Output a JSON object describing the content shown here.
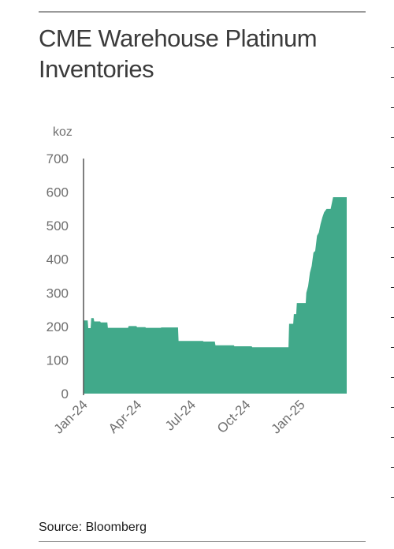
{
  "title": "CME Warehouse Platinum Inventories",
  "source": "Source: Bloomberg",
  "colors": {
    "fill": "#41a98a",
    "axis": "#555555",
    "text": "#6f6f6f",
    "rule": "#9a9a9a"
  },
  "chart_data": {
    "type": "area",
    "title": "CME Warehouse Platinum Inventories",
    "ylabel": "koz",
    "ylim": [
      0,
      700
    ],
    "yticks": [
      0,
      100,
      200,
      300,
      400,
      500,
      600,
      700
    ],
    "xlim": [
      "2024-01-01",
      "2025-03-19"
    ],
    "xticks": [
      {
        "date": "2024-01-01",
        "label": "Jan-24"
      },
      {
        "date": "2024-04-01",
        "label": "Apr-24"
      },
      {
        "date": "2024-07-01",
        "label": "Jul-24"
      },
      {
        "date": "2024-10-01",
        "label": "Oct-24"
      },
      {
        "date": "2025-01-01",
        "label": "Jan-25"
      }
    ],
    "grid": false,
    "series": [
      {
        "points": [
          [
            "2024-01-01",
            218
          ],
          [
            "2024-01-08",
            218
          ],
          [
            "2024-01-09",
            195
          ],
          [
            "2024-01-13",
            195
          ],
          [
            "2024-01-14",
            225
          ],
          [
            "2024-01-18",
            225
          ],
          [
            "2024-01-19",
            215
          ],
          [
            "2024-01-29",
            215
          ],
          [
            "2024-01-30",
            212
          ],
          [
            "2024-02-10",
            212
          ],
          [
            "2024-02-11",
            196
          ],
          [
            "2024-03-16",
            196
          ],
          [
            "2024-03-17",
            201
          ],
          [
            "2024-03-30",
            201
          ],
          [
            "2024-03-31",
            198
          ],
          [
            "2024-04-14",
            198
          ],
          [
            "2024-04-15",
            196
          ],
          [
            "2024-05-10",
            196
          ],
          [
            "2024-05-11",
            197
          ],
          [
            "2024-06-08",
            197
          ],
          [
            "2024-06-09",
            157
          ],
          [
            "2024-07-20",
            157
          ],
          [
            "2024-07-21",
            155
          ],
          [
            "2024-08-09",
            155
          ],
          [
            "2024-08-10",
            144
          ],
          [
            "2024-09-10",
            144
          ],
          [
            "2024-09-11",
            141
          ],
          [
            "2024-10-10",
            141
          ],
          [
            "2024-10-11",
            138
          ],
          [
            "2024-12-11",
            138
          ],
          [
            "2024-12-12",
            208
          ],
          [
            "2024-12-19",
            208
          ],
          [
            "2024-12-20",
            237
          ],
          [
            "2024-12-24",
            237
          ],
          [
            "2024-12-25",
            270
          ],
          [
            "2025-01-09",
            270
          ],
          [
            "2025-01-10",
            300
          ],
          [
            "2025-01-13",
            320
          ],
          [
            "2025-01-16",
            360
          ],
          [
            "2025-01-19",
            380
          ],
          [
            "2025-01-22",
            420
          ],
          [
            "2025-01-25",
            425
          ],
          [
            "2025-01-28",
            470
          ],
          [
            "2025-01-31",
            480
          ],
          [
            "2025-02-03",
            505
          ],
          [
            "2025-02-06",
            525
          ],
          [
            "2025-02-09",
            540
          ],
          [
            "2025-02-13",
            550
          ],
          [
            "2025-02-17",
            550
          ],
          [
            "2025-02-20",
            550
          ],
          [
            "2025-02-24",
            585
          ],
          [
            "2025-03-19",
            585
          ]
        ]
      }
    ]
  }
}
